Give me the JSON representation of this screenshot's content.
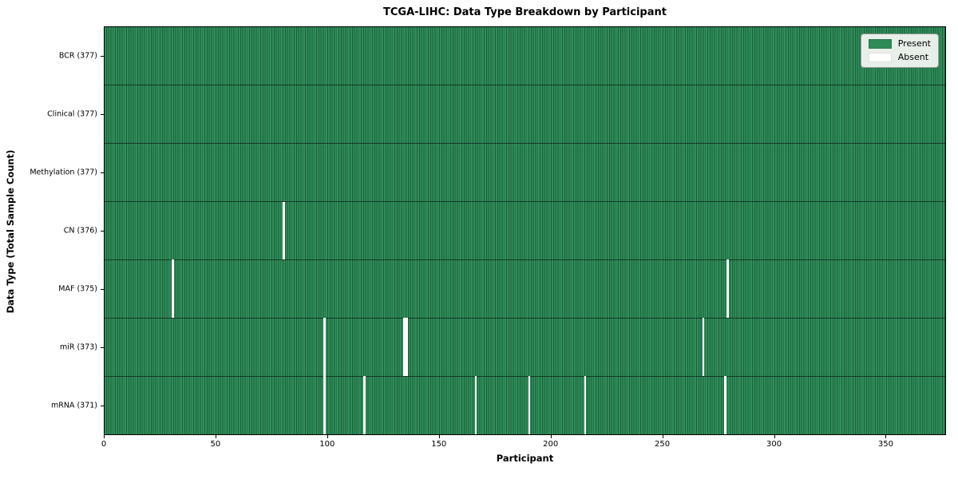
{
  "chart_data": {
    "type": "heatmap",
    "title": "TCGA-LIHC: Data Type Breakdown by Participant",
    "xlabel": "Participant",
    "ylabel": "Data Type (Total Sample Count)",
    "x_range": [
      0,
      377
    ],
    "x_ticks": [
      0,
      50,
      100,
      150,
      200,
      250,
      300,
      350
    ],
    "n_participants": 377,
    "grid": "cell-edges",
    "legend_position": "upper right",
    "rows": [
      {
        "label": "BCR (377)",
        "data_type": "BCR",
        "present_count": 377,
        "absent_participants": []
      },
      {
        "label": "Clinical (377)",
        "data_type": "Clinical",
        "present_count": 377,
        "absent_participants": []
      },
      {
        "label": "Methylation (377)",
        "data_type": "Methylation",
        "present_count": 377,
        "absent_participants": []
      },
      {
        "label": "CN (376)",
        "data_type": "CN",
        "present_count": 376,
        "absent_participants": [
          80
        ]
      },
      {
        "label": "MAF (375)",
        "data_type": "MAF",
        "present_count": 375,
        "absent_participants": [
          30,
          279
        ]
      },
      {
        "label": "miR (373)",
        "data_type": "miR",
        "present_count": 373,
        "absent_participants": [
          98,
          134,
          135,
          268
        ]
      },
      {
        "label": "mRNA (371)",
        "data_type": "mRNA",
        "present_count": 371,
        "absent_participants": [
          98,
          116,
          166,
          190,
          215,
          278
        ]
      }
    ],
    "legend": [
      {
        "label": "Present",
        "color": "#2e8b57"
      },
      {
        "label": "Absent",
        "color": "#ffffff"
      }
    ],
    "colors": {
      "present_fill": "#2f8f5b",
      "cell_edge": "#1e5e3a",
      "absent_fill": "#ffffff",
      "row_separator": "rgba(0,0,0,0.55)",
      "plot_border": "#000000",
      "legend_background": "#f8f8f6",
      "text": "#000000"
    }
  }
}
